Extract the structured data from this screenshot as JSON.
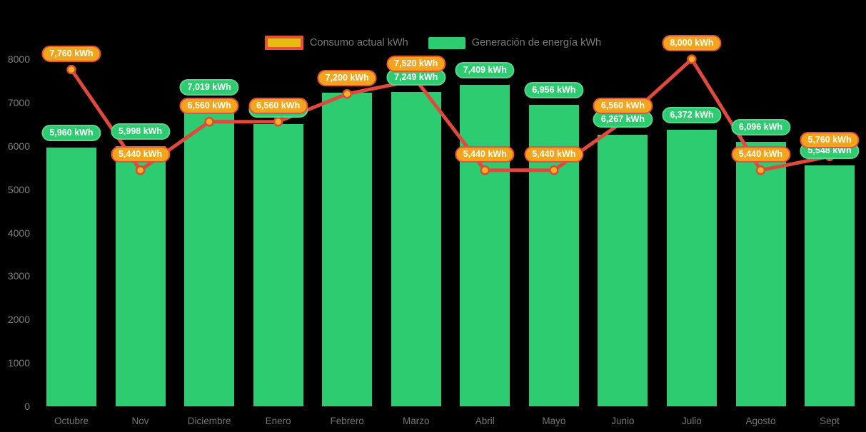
{
  "colors": {
    "background": "#000000",
    "bar_green": "#2ecc71",
    "bar_label_border": "#58d68d",
    "line_red": "#e0493b",
    "line_label_fill": "#f2a51c",
    "line_label_border": "#e8503a",
    "marker_gold": "#f5b31f",
    "axis_text": "#7a7a7a",
    "label_text": "#ffffff"
  },
  "legend": {
    "items": [
      {
        "label": "Consumo actual kWh",
        "swatch": "line-swatch",
        "fill": "#e6bc11",
        "border": "#e8503a"
      },
      {
        "label": "Generación de energía kWh",
        "swatch": "bar-swatch",
        "fill": "#2ecc71"
      }
    ]
  },
  "chart_data": {
    "type": "bar+line combo",
    "categories": [
      "Octubre",
      "Nov",
      "Diciembre",
      "Enero",
      "Febrero",
      "Marzo",
      "Abril",
      "Mayo",
      "Junio",
      "Julio",
      "Agosto",
      "Sept"
    ],
    "series": [
      {
        "name": "Generación de energía kWh",
        "type": "bar",
        "color": "#2ecc71",
        "values": [
          5960,
          5998,
          7019,
          6500,
          7230,
          7249,
          7409,
          6956,
          6267,
          6372,
          6096,
          5548
        ],
        "labels": [
          "5,960 kWh",
          "5,998 kWh",
          "7,019 kWh",
          null,
          null,
          "7,249 kWh",
          "7,409 kWh",
          "6,956 kWh",
          "6,267 kWh",
          "6,372 kWh",
          "6,096 kWh",
          "5,548 kWh"
        ]
      },
      {
        "name": "Consumo actual kWh",
        "type": "line",
        "color": "#e0493b",
        "values": [
          7760,
          5440,
          6560,
          6560,
          7200,
          7520,
          5440,
          5440,
          6560,
          8000,
          5440,
          5760
        ],
        "labels": [
          "7,760 kWh",
          "5,440 kWh",
          "6,560 kWh",
          "6,560 kWh",
          "7,200 kWh",
          "7,520 kWh",
          "5,440 kWh",
          "5,440 kWh",
          "6,560 kWh",
          "8,000 kWh",
          "5,440 kWh",
          "5,760 kWh"
        ]
      }
    ],
    "xlabel": "",
    "ylabel": "",
    "ylim": [
      0,
      8000
    ],
    "y_tick_step": 1000,
    "y_ticks": [
      "0",
      "1000",
      "2000",
      "3000",
      "4000",
      "5000",
      "6000",
      "7000",
      "8000"
    ],
    "grid": false,
    "legend_position": "top-center",
    "value_labels": "pill badges above bars and line points"
  }
}
